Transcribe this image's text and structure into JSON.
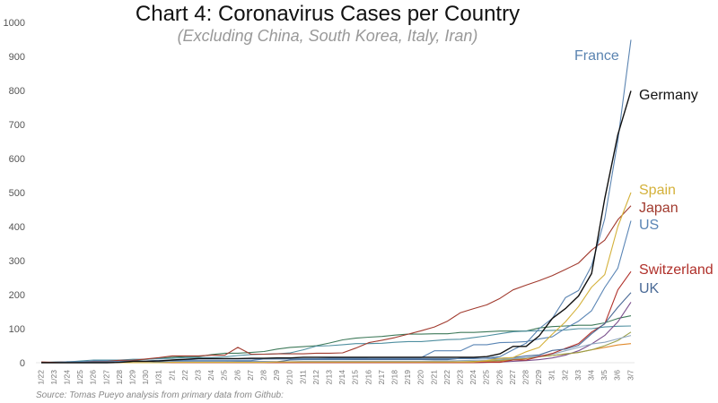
{
  "chart_data": {
    "type": "line",
    "title": "Chart 4: Coronavirus Cases per Country",
    "subtitle": "(Excluding China, South Korea, Italy, Iran)",
    "source": "Source: Tomas Pueyo analysis from primary data from Github:",
    "xlabel": "",
    "ylabel": "",
    "ylim": [
      0,
      1000
    ],
    "yticks": [
      0,
      100,
      200,
      300,
      400,
      500,
      600,
      700,
      800,
      900,
      1000
    ],
    "grid": false,
    "x": [
      "1/22",
      "1/23",
      "1/24",
      "1/25",
      "1/26",
      "1/27",
      "1/28",
      "1/29",
      "1/30",
      "1/31",
      "2/1",
      "2/2",
      "2/3",
      "2/4",
      "2/5",
      "2/6",
      "2/7",
      "2/8",
      "2/9",
      "2/10",
      "2/11",
      "2/12",
      "2/13",
      "2/14",
      "2/15",
      "2/16",
      "2/17",
      "2/18",
      "2/19",
      "2/20",
      "2/21",
      "2/22",
      "2/23",
      "2/24",
      "2/25",
      "2/26",
      "2/27",
      "2/28",
      "2/29",
      "3/1",
      "3/2",
      "3/3",
      "3/4",
      "3/5",
      "3/6",
      "3/7"
    ],
    "series": [
      {
        "name": "",
        "color": "#3f7a5a",
        "values": [
          0,
          1,
          3,
          3,
          4,
          5,
          7,
          7,
          10,
          13,
          16,
          18,
          18,
          24,
          28,
          28,
          30,
          33,
          40,
          45,
          47,
          50,
          58,
          67,
          72,
          75,
          77,
          81,
          84,
          84,
          85,
          85,
          89,
          89,
          91,
          93,
          93,
          93,
          102,
          106,
          108,
          110,
          110,
          117,
          130,
          138
        ]
      },
      {
        "name": "",
        "color": "#4f8fa0",
        "values": [
          0,
          2,
          2,
          5,
          8,
          8,
          8,
          10,
          10,
          12,
          13,
          15,
          15,
          15,
          17,
          21,
          24,
          25,
          26,
          29,
          38,
          49,
          50,
          53,
          56,
          56,
          57,
          60,
          62,
          62,
          65,
          68,
          69,
          74,
          79,
          85,
          91,
          93,
          94,
          95,
          96,
          100,
          100,
          105,
          107,
          108
        ]
      },
      {
        "name": "",
        "color": "#e08a2c",
        "values": [
          0,
          0,
          0,
          0,
          0,
          0,
          0,
          0,
          0,
          0,
          1,
          1,
          1,
          1,
          1,
          1,
          1,
          1,
          1,
          1,
          2,
          2,
          2,
          2,
          2,
          2,
          2,
          2,
          2,
          2,
          2,
          2,
          2,
          2,
          3,
          5,
          8,
          12,
          18,
          21,
          25,
          30,
          38,
          45,
          52,
          56
        ]
      },
      {
        "name": "",
        "color": "#7a4f8c",
        "values": [
          0,
          0,
          0,
          0,
          0,
          0,
          0,
          0,
          0,
          0,
          0,
          0,
          0,
          0,
          0,
          0,
          0,
          0,
          0,
          0,
          0,
          0,
          0,
          0,
          0,
          0,
          0,
          0,
          0,
          0,
          0,
          0,
          0,
          0,
          1,
          2,
          4,
          6,
          9,
          14,
          22,
          35,
          55,
          80,
          120,
          178
        ]
      },
      {
        "name": "",
        "color": "#9aa04a",
        "values": [
          0,
          0,
          0,
          0,
          0,
          0,
          0,
          0,
          0,
          0,
          2,
          2,
          2,
          2,
          2,
          2,
          2,
          2,
          2,
          2,
          3,
          3,
          3,
          3,
          3,
          3,
          3,
          3,
          3,
          3,
          3,
          3,
          3,
          4,
          5,
          7,
          10,
          14,
          18,
          21,
          26,
          30,
          38,
          50,
          65,
          90
        ]
      },
      {
        "name": "",
        "color": "#8fa7c0",
        "values": [
          0,
          0,
          0,
          0,
          0,
          0,
          0,
          0,
          0,
          0,
          3,
          3,
          3,
          3,
          3,
          3,
          3,
          3,
          3,
          3,
          4,
          4,
          4,
          4,
          4,
          4,
          4,
          4,
          4,
          4,
          5,
          5,
          6,
          7,
          8,
          10,
          12,
          15,
          20,
          25,
          35,
          45,
          55,
          60,
          70,
          80
        ]
      },
      {
        "name": "Switzerland",
        "color": "#b0302a",
        "values": [
          0,
          0,
          0,
          0,
          0,
          0,
          0,
          0,
          0,
          0,
          0,
          0,
          0,
          0,
          0,
          0,
          0,
          0,
          0,
          0,
          0,
          0,
          0,
          0,
          0,
          0,
          0,
          0,
          0,
          0,
          0,
          0,
          0,
          0,
          1,
          1,
          8,
          8,
          18,
          27,
          42,
          56,
          90,
          114,
          214,
          268
        ]
      },
      {
        "name": "UK",
        "color": "#4a6a96",
        "values": [
          0,
          0,
          0,
          0,
          0,
          0,
          0,
          0,
          0,
          2,
          2,
          2,
          2,
          2,
          2,
          3,
          3,
          3,
          3,
          8,
          9,
          9,
          9,
          9,
          9,
          9,
          9,
          9,
          9,
          9,
          9,
          9,
          13,
          13,
          13,
          13,
          15,
          20,
          23,
          36,
          40,
          51,
          85,
          115,
          163,
          206
        ]
      },
      {
        "name": "US",
        "color": "#5a85b5",
        "values": [
          1,
          1,
          2,
          2,
          5,
          5,
          5,
          5,
          5,
          7,
          8,
          8,
          11,
          11,
          11,
          11,
          11,
          11,
          11,
          11,
          12,
          12,
          13,
          13,
          13,
          15,
          15,
          15,
          15,
          15,
          35,
          35,
          35,
          53,
          53,
          59,
          60,
          62,
          70,
          76,
          101,
          122,
          153,
          221,
          278,
          417
        ]
      },
      {
        "name": "Japan",
        "color": "#a13a2e",
        "values": [
          2,
          1,
          2,
          2,
          4,
          4,
          7,
          7,
          11,
          15,
          20,
          20,
          20,
          22,
          22,
          45,
          25,
          25,
          26,
          26,
          26,
          28,
          28,
          29,
          43,
          59,
          66,
          74,
          84,
          94,
          105,
          122,
          147,
          159,
          170,
          189,
          214,
          228,
          241,
          256,
          274,
          293,
          331,
          360,
          420,
          461
        ]
      },
      {
        "name": "Spain",
        "color": "#d4b13a",
        "values": [
          0,
          0,
          0,
          0,
          0,
          0,
          0,
          0,
          0,
          0,
          1,
          1,
          1,
          1,
          1,
          1,
          1,
          1,
          2,
          2,
          2,
          2,
          2,
          2,
          2,
          2,
          2,
          2,
          2,
          2,
          2,
          2,
          2,
          2,
          6,
          13,
          15,
          32,
          45,
          84,
          120,
          165,
          222,
          259,
          400,
          500
        ]
      },
      {
        "name": "France",
        "color": "#5b84b1",
        "values": [
          0,
          0,
          3,
          3,
          3,
          3,
          4,
          5,
          5,
          6,
          6,
          6,
          6,
          6,
          6,
          6,
          6,
          11,
          11,
          11,
          11,
          11,
          11,
          11,
          12,
          12,
          12,
          12,
          12,
          12,
          12,
          12,
          12,
          12,
          14,
          18,
          38,
          57,
          100,
          130,
          191,
          212,
          285,
          423,
          653,
          949
        ]
      },
      {
        "name": "Germany",
        "color": "#111111",
        "values": [
          0,
          0,
          0,
          0,
          0,
          0,
          1,
          4,
          4,
          5,
          8,
          10,
          12,
          12,
          12,
          12,
          13,
          13,
          14,
          14,
          16,
          16,
          16,
          16,
          16,
          16,
          16,
          16,
          16,
          16,
          16,
          16,
          16,
          16,
          18,
          26,
          48,
          48,
          79,
          130,
          159,
          196,
          262,
          482,
          670,
          799
        ]
      }
    ]
  }
}
